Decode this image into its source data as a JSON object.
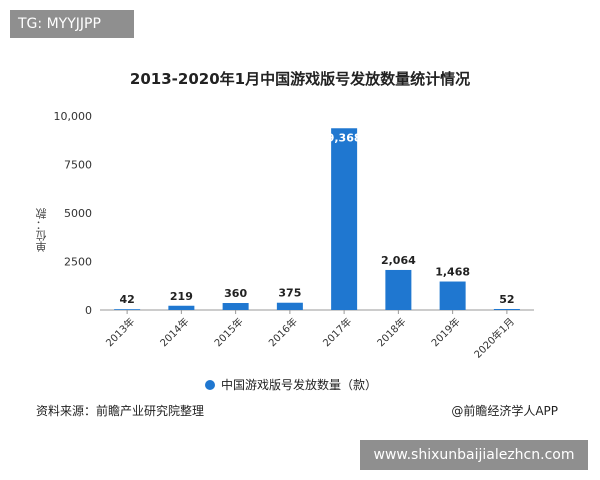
{
  "overlay": {
    "tag": "TG: MYYJJPP",
    "url": "www.shixunbaijialezhcn.com"
  },
  "chart_data": {
    "type": "bar",
    "title": "2013-2020年1月中国游戏版号发放数量统计情况",
    "ylabel": "单位：款",
    "ylim": [
      0,
      10000
    ],
    "yticks": [
      "0",
      "2500",
      "5000",
      "7500",
      "10,000"
    ],
    "categories": [
      "2013年",
      "2014年",
      "2015年",
      "2016年",
      "2017年",
      "2018年",
      "2019年",
      "2020年1月"
    ],
    "series": [
      {
        "name": "中国游戏版号发放数量（款）",
        "values": [
          42,
          219,
          360,
          375,
          9368,
          2064,
          1468,
          52
        ],
        "labels": [
          "42",
          "219",
          "360",
          "375",
          "9,368",
          "2,064",
          "1,468",
          "52"
        ],
        "color": "#1f77d0"
      }
    ],
    "legend": "bottom-center",
    "grid": false
  },
  "footer": {
    "source": "资料来源：前瞻产业研究院整理",
    "credit": "@前瞻经济学人APP"
  }
}
